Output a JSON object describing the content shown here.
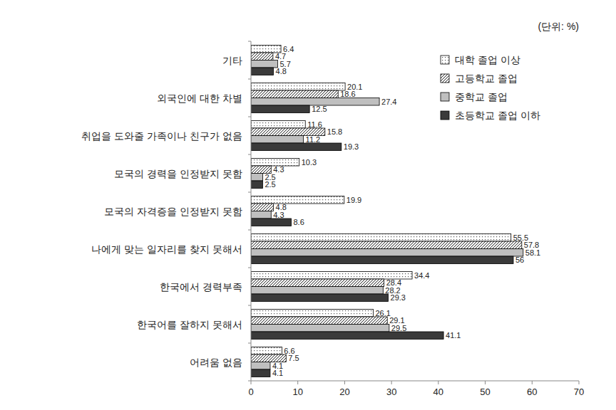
{
  "chart_data": {
    "type": "bar",
    "orientation": "horizontal",
    "annotations": [
      "(단위: %)"
    ],
    "categories": [
      "기타",
      "외국인에 대한 차별",
      "취업을 도와줄 가족이나 친구가 없음",
      "모국의 경력을 인정받지 못함",
      "모국의 자격증을 인정받지 못함",
      "나에게 맞는 일자리를 찾지 못해서",
      "한국에서 경력부족",
      "한국어를 잘하지 못해서",
      "어려움 없음"
    ],
    "series": [
      {
        "name": "대학 졸업 이상",
        "color": "#ffffff",
        "values": [
          6.4,
          20.1,
          11.6,
          10.3,
          19.9,
          55.5,
          34.4,
          26.1,
          6.6
        ]
      },
      {
        "name": "고등학교 졸업",
        "color": "#ffffff",
        "values": [
          4.7,
          18.6,
          15.8,
          4.3,
          4.8,
          57.8,
          28.4,
          29.1,
          7.5
        ]
      },
      {
        "name": "중학교 졸업",
        "color": "#bfbfbf",
        "values": [
          5.7,
          27.4,
          11.2,
          2.5,
          4.3,
          58.1,
          28.2,
          29.5,
          4.1
        ]
      },
      {
        "name": "초등학교 졸업 이하",
        "color": "#3a3a3a",
        "values": [
          4.8,
          12.5,
          19.3,
          2.5,
          8.6,
          56,
          29.3,
          41.1,
          4.1
        ]
      }
    ],
    "xlim": [
      0,
      70
    ],
    "xticks": [
      0,
      10,
      20,
      30,
      40,
      50,
      60,
      70
    ],
    "grid": false,
    "legend": "top-right",
    "data_labels": true
  }
}
